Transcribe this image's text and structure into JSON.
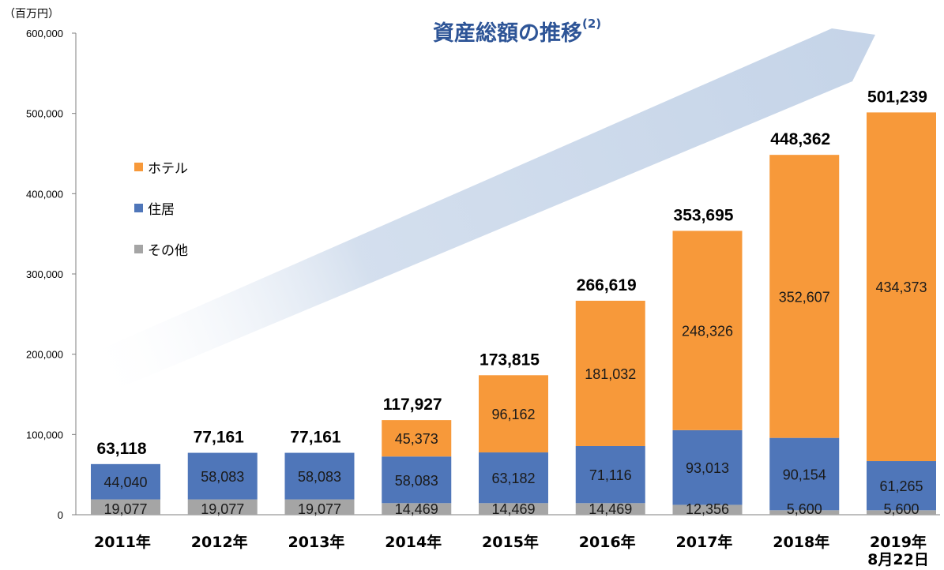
{
  "chart_data": {
    "type": "bar",
    "stacked": true,
    "title": "資産総額の推移",
    "title_note": "(2)",
    "unit_label": "（百万円）",
    "ylim": [
      0,
      600000
    ],
    "yticks": [
      0,
      100000,
      200000,
      300000,
      400000,
      500000,
      600000
    ],
    "ytick_labels": [
      "0",
      "100,000",
      "200,000",
      "300,000",
      "400,000",
      "500,000",
      "600,000"
    ],
    "categories": [
      "2011年",
      "2012年",
      "2013年",
      "2014年",
      "2015年",
      "2016年",
      "2017年",
      "2018年",
      "2019年\n8月22日"
    ],
    "series": [
      {
        "name": "その他",
        "color": "#a5a5a5",
        "values": [
          19077,
          19077,
          19077,
          14469,
          14469,
          14469,
          12356,
          5600,
          5600
        ],
        "labels": [
          "19,077",
          "19,077",
          "19,077",
          "14,469",
          "14,469",
          "14,469",
          "12,356",
          "5,600",
          "5,600"
        ]
      },
      {
        "name": "住居",
        "color": "#4f76b9",
        "values": [
          44040,
          58083,
          58083,
          58083,
          63182,
          71116,
          93013,
          90154,
          61265
        ],
        "labels": [
          "44,040",
          "58,083",
          "58,083",
          "58,083",
          "63,182",
          "71,116",
          "93,013",
          "90,154",
          "61,265"
        ]
      },
      {
        "name": "ホテル",
        "color": "#f7993a",
        "values": [
          0,
          0,
          0,
          45373,
          96162,
          181032,
          248326,
          352607,
          434373
        ],
        "labels": [
          "",
          "",
          "",
          "45,373",
          "96,162",
          "181,032",
          "248,326",
          "352,607",
          "434,373"
        ]
      }
    ],
    "totals": [
      63118,
      77161,
      77161,
      117927,
      173815,
      266619,
      353695,
      448362,
      501239
    ],
    "total_labels": [
      "63,118",
      "77,161",
      "77,161",
      "117,927",
      "173,815",
      "266,619",
      "353,695",
      "448,362",
      "501,239"
    ],
    "legend_order": [
      "ホテル",
      "住居",
      "その他"
    ],
    "legend_placement": "left",
    "grid": false,
    "arrow_color": "#c5d4e8"
  }
}
